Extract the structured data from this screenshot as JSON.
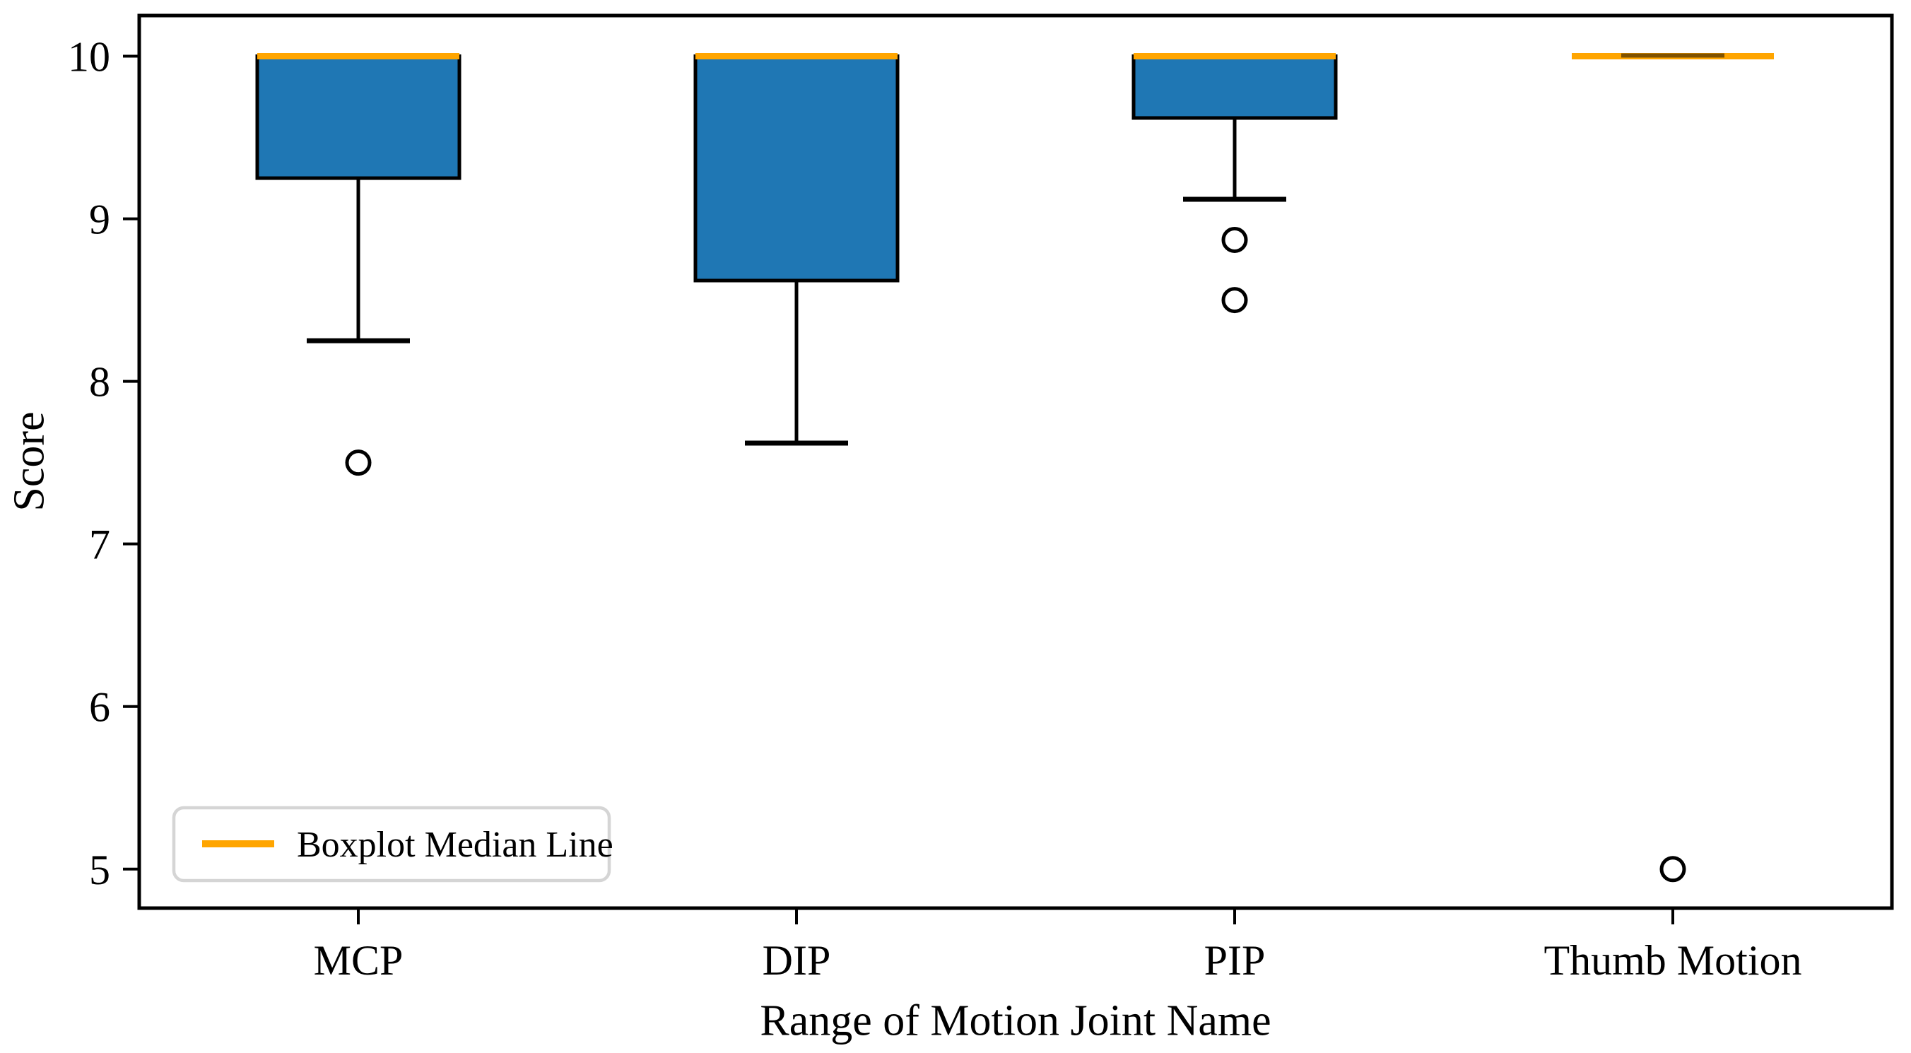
{
  "chart_data": {
    "type": "boxplot",
    "title": "",
    "xlabel": "Range of Motion Joint Name",
    "ylabel": "Score",
    "categories": [
      "MCP",
      "DIP",
      "PIP",
      "Thumb Motion"
    ],
    "yticks": [
      10,
      9,
      8,
      7,
      6,
      5
    ],
    "ylim": [
      4.76,
      10.25
    ],
    "grid": false,
    "legend": {
      "label": "Boxplot Median Line",
      "location": "lower-left"
    },
    "series": [
      {
        "name": "MCP",
        "median": 10.0,
        "q1": 9.25,
        "q3": 10.0,
        "whisker_low": 8.25,
        "whisker_high": 10.0,
        "outliers": [
          7.5
        ]
      },
      {
        "name": "DIP",
        "median": 10.0,
        "q1": 8.62,
        "q3": 10.0,
        "whisker_low": 7.62,
        "whisker_high": 10.0,
        "outliers": []
      },
      {
        "name": "PIP",
        "median": 10.0,
        "q1": 9.62,
        "q3": 10.0,
        "whisker_low": 9.12,
        "whisker_high": 10.0,
        "outliers": [
          8.87,
          8.5
        ]
      },
      {
        "name": "Thumb Motion",
        "median": 10.0,
        "q1": 10.0,
        "q3": 10.0,
        "whisker_low": 10.0,
        "whisker_high": 10.0,
        "outliers": [
          5.0
        ]
      }
    ],
    "colors": {
      "box_fill": "#1f77b4",
      "box_edge": "#000000",
      "whisker": "#000000",
      "cap": "#000000",
      "median": "#ffa500",
      "outlier_edge": "#000000",
      "outlier_fill": "#ffffff",
      "legend_border": "#d5d5d5",
      "text": "#000000"
    }
  }
}
